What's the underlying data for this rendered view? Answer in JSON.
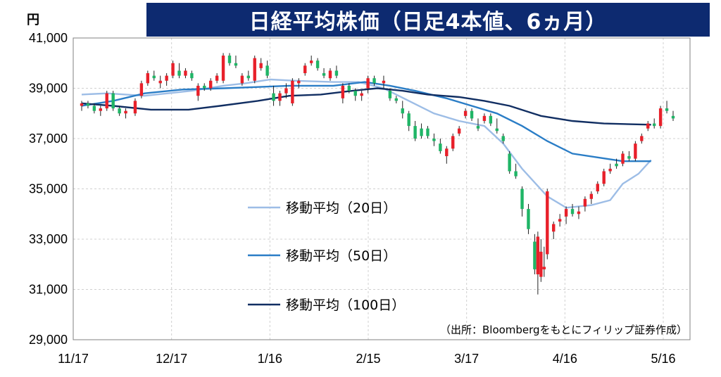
{
  "title": "日経平均株価（日足4本値、6ヵ月）",
  "colors": {
    "title_bg": "#0d2a70",
    "ma20": "#9dbde6",
    "ma50": "#2a7dc6",
    "ma100": "#112e62",
    "up": "#e8202a",
    "down": "#1fb566",
    "axis": "#808080"
  },
  "chart_data": {
    "type": "candlestick",
    "ylabel": "円",
    "ylim": [
      29000,
      41000
    ],
    "yticks": [
      "41,000",
      "39,000",
      "37,000",
      "35,000",
      "33,000",
      "31,000",
      "29,000"
    ],
    "yticks_values": [
      41000,
      39000,
      37000,
      35000,
      33000,
      31000,
      29000
    ],
    "xticks": [
      "11/17",
      "12/17",
      "1/16",
      "2/15",
      "3/17",
      "4/16",
      "5/16"
    ],
    "xrange": [
      0,
      181
    ],
    "xticks_values": [
      0,
      30,
      60,
      90,
      120,
      150,
      180
    ],
    "source": "（出所：Bloombergをもとにフィリップ証券作成）",
    "series": [
      {
        "name": "移動平均（20日）",
        "color_key": "ma20",
        "points": [
          [
            0,
            38750
          ],
          [
            8,
            38800
          ],
          [
            20,
            38700
          ],
          [
            35,
            38900
          ],
          [
            45,
            39100
          ],
          [
            52,
            39200
          ],
          [
            60,
            39350
          ],
          [
            68,
            39300
          ],
          [
            80,
            39250
          ],
          [
            88,
            39250
          ],
          [
            96,
            39000
          ],
          [
            104,
            38500
          ],
          [
            112,
            38000
          ],
          [
            120,
            37700
          ],
          [
            128,
            37500
          ],
          [
            134,
            36800
          ],
          [
            140,
            35800
          ],
          [
            148,
            34700
          ],
          [
            154,
            34250
          ],
          [
            162,
            34350
          ],
          [
            168,
            34550
          ],
          [
            172,
            35200
          ],
          [
            177,
            35600
          ],
          [
            181,
            36150
          ]
        ]
      },
      {
        "name": "移動平均（50日）",
        "color_key": "ma50",
        "points": [
          [
            0,
            38300
          ],
          [
            10,
            38500
          ],
          [
            20,
            38800
          ],
          [
            32,
            38950
          ],
          [
            45,
            39000
          ],
          [
            56,
            39050
          ],
          [
            66,
            39100
          ],
          [
            80,
            39100
          ],
          [
            90,
            39250
          ],
          [
            98,
            39100
          ],
          [
            106,
            38900
          ],
          [
            116,
            38600
          ],
          [
            124,
            38300
          ],
          [
            132,
            38000
          ],
          [
            140,
            37500
          ],
          [
            148,
            36900
          ],
          [
            156,
            36400
          ],
          [
            164,
            36250
          ],
          [
            172,
            36100
          ],
          [
            181,
            36100
          ]
        ]
      },
      {
        "name": "移動平均（100日）",
        "color_key": "ma100",
        "points": [
          [
            0,
            38400
          ],
          [
            10,
            38300
          ],
          [
            22,
            38150
          ],
          [
            34,
            38150
          ],
          [
            44,
            38300
          ],
          [
            56,
            38500
          ],
          [
            66,
            38700
          ],
          [
            76,
            38750
          ],
          [
            86,
            38900
          ],
          [
            94,
            39000
          ],
          [
            102,
            38900
          ],
          [
            110,
            38750
          ],
          [
            120,
            38650
          ],
          [
            128,
            38500
          ],
          [
            136,
            38300
          ],
          [
            146,
            37900
          ],
          [
            156,
            37700
          ],
          [
            166,
            37600
          ],
          [
            181,
            37550
          ]
        ]
      }
    ],
    "candles": [
      [
        0,
        38300,
        38500,
        38100,
        38400
      ],
      [
        2,
        38400,
        38500,
        38200,
        38300
      ],
      [
        4,
        38300,
        38400,
        38000,
        38100
      ],
      [
        6,
        38100,
        38300,
        37900,
        38200
      ],
      [
        8,
        38200,
        38900,
        38100,
        38800
      ],
      [
        10,
        38800,
        38900,
        38100,
        38200
      ],
      [
        12,
        38200,
        38300,
        37900,
        38000
      ],
      [
        14,
        38000,
        38200,
        37800,
        38100
      ],
      [
        17,
        38000,
        38600,
        37900,
        38500
      ],
      [
        19,
        38700,
        39300,
        38600,
        39200
      ],
      [
        21,
        39200,
        39700,
        39100,
        39600
      ],
      [
        23,
        39500,
        39700,
        39300,
        39400
      ],
      [
        25,
        39200,
        39500,
        39000,
        39300
      ],
      [
        27,
        39300,
        39600,
        39100,
        39500
      ],
      [
        29,
        39500,
        40100,
        39400,
        40000
      ],
      [
        31,
        39700,
        40000,
        39400,
        39500
      ],
      [
        33,
        39500,
        39800,
        39400,
        39700
      ],
      [
        35,
        39600,
        39700,
        39300,
        39400
      ],
      [
        37,
        38700,
        39200,
        38500,
        39100
      ],
      [
        39,
        39100,
        39200,
        38900,
        39000
      ],
      [
        41,
        39000,
        39400,
        38900,
        39300
      ],
      [
        43,
        39300,
        39600,
        39200,
        39500
      ],
      [
        45,
        39300,
        40400,
        39200,
        40300
      ],
      [
        47,
        40300,
        40400,
        39900,
        40000
      ],
      [
        49,
        40000,
        40300,
        39800,
        39900
      ],
      [
        51,
        39200,
        39600,
        39100,
        39500
      ],
      [
        53,
        39500,
        39700,
        39300,
        39400
      ],
      [
        55,
        39300,
        40300,
        39200,
        40200
      ],
      [
        57,
        39800,
        40200,
        39700,
        40000
      ],
      [
        59,
        39900,
        40100,
        39400,
        39500
      ],
      [
        61,
        38800,
        39100,
        38300,
        38500
      ],
      [
        63,
        38500,
        38900,
        38300,
        38800
      ],
      [
        65,
        38800,
        39200,
        38600,
        39000
      ],
      [
        67,
        38400,
        39400,
        38300,
        39300
      ],
      [
        69,
        39200,
        39400,
        39000,
        39300
      ],
      [
        71,
        39600,
        40000,
        39500,
        39900
      ],
      [
        73,
        40000,
        40300,
        39900,
        40100
      ],
      [
        75,
        40100,
        40200,
        39700,
        39800
      ],
      [
        77,
        39600,
        39800,
        39400,
        39500
      ],
      [
        79,
        39400,
        39800,
        39300,
        39700
      ],
      [
        81,
        39700,
        39900,
        39400,
        39500
      ],
      [
        83,
        38600,
        39200,
        38400,
        39100
      ],
      [
        85,
        39100,
        39200,
        38800,
        38900
      ],
      [
        87,
        38900,
        39000,
        38500,
        38700
      ],
      [
        89,
        38700,
        38900,
        38500,
        38800
      ],
      [
        91,
        39000,
        39500,
        38800,
        39400
      ],
      [
        93,
        39400,
        39500,
        39100,
        39200
      ],
      [
        96,
        39200,
        39500,
        39000,
        39300
      ],
      [
        98,
        38900,
        39000,
        38500,
        38600
      ],
      [
        100,
        38600,
        38700,
        38400,
        38500
      ],
      [
        102,
        38200,
        38500,
        37800,
        38000
      ],
      [
        104,
        38000,
        38100,
        37300,
        37500
      ],
      [
        106,
        37500,
        37700,
        36900,
        37000
      ],
      [
        108,
        37400,
        37600,
        37000,
        37100
      ],
      [
        110,
        37400,
        37500,
        37000,
        37100
      ],
      [
        112,
        37000,
        37200,
        36700,
        36900
      ],
      [
        114,
        36800,
        37000,
        36400,
        36500
      ],
      [
        116,
        36300,
        36700,
        36000,
        36600
      ],
      [
        118,
        36600,
        37200,
        36500,
        37100
      ],
      [
        120,
        37200,
        37500,
        37100,
        37400
      ],
      [
        122,
        37900,
        38200,
        37800,
        38100
      ],
      [
        124,
        38100,
        38200,
        37700,
        37800
      ],
      [
        126,
        37500,
        37800,
        37300,
        37400
      ],
      [
        128,
        37700,
        38000,
        37600,
        37900
      ],
      [
        130,
        37900,
        38000,
        37500,
        37600
      ],
      [
        132,
        37400,
        37800,
        37200,
        37300
      ],
      [
        134,
        37100,
        37200,
        36800,
        36900
      ],
      [
        136,
        36400,
        36500,
        35600,
        35700
      ],
      [
        138,
        35700,
        36000,
        35400,
        35500
      ],
      [
        140,
        35000,
        35100,
        33900,
        34200
      ],
      [
        142,
        34200,
        34400,
        33200,
        33400
      ],
      [
        144,
        32900,
        33200,
        31600,
        31800
      ],
      [
        145,
        31600,
        33300,
        30800,
        33100
      ],
      [
        146,
        31500,
        33000,
        31300,
        32500
      ],
      [
        147,
        31800,
        32700,
        31500,
        31900
      ],
      [
        148,
        32400,
        35000,
        32200,
        34900
      ],
      [
        150,
        33300,
        33700,
        33000,
        33600
      ],
      [
        152,
        33700,
        34000,
        33500,
        33800
      ],
      [
        154,
        33900,
        34300,
        33600,
        34200
      ],
      [
        156,
        34200,
        34400,
        33900,
        34000
      ],
      [
        158,
        34000,
        34300,
        33800,
        34100
      ],
      [
        160,
        34300,
        34700,
        34100,
        34600
      ],
      [
        162,
        34600,
        34900,
        34400,
        34800
      ],
      [
        164,
        34900,
        35300,
        34800,
        35200
      ],
      [
        166,
        35200,
        35800,
        35100,
        35700
      ],
      [
        168,
        35700,
        36000,
        35600,
        35800
      ],
      [
        170,
        36000,
        36200,
        35800,
        35900
      ],
      [
        172,
        36000,
        36500,
        35900,
        36400
      ],
      [
        174,
        36300,
        36500,
        36100,
        36200
      ],
      [
        176,
        36200,
        36900,
        36100,
        36800
      ],
      [
        178,
        36900,
        37200,
        36800,
        37100
      ],
      [
        180,
        37400,
        37700,
        37300,
        37600
      ],
      [
        182,
        37600,
        37800,
        37400,
        37500
      ],
      [
        184,
        37500,
        38300,
        37400,
        38200
      ],
      [
        186,
        38200,
        38500,
        38000,
        38100
      ],
      [
        188,
        37900,
        38100,
        37700,
        37800
      ]
    ]
  }
}
